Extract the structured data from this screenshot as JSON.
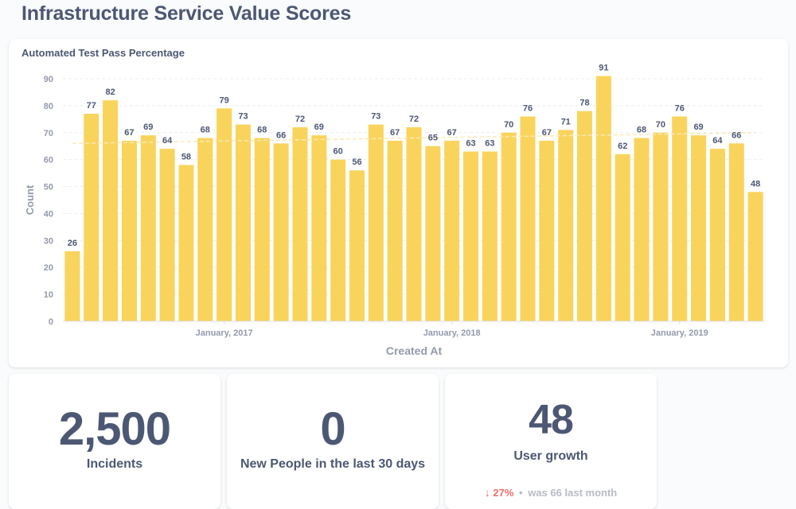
{
  "page": {
    "title": "Infrastructure Service Value Scores"
  },
  "chart_card": {
    "title": "Automated Test Pass Percentage"
  },
  "chart_data": {
    "type": "bar",
    "title": "Automated Test Pass Percentage",
    "xlabel": "Created At",
    "ylabel": "Count",
    "ylim": [
      0,
      90
    ],
    "yticks": [
      0,
      10,
      20,
      30,
      40,
      50,
      60,
      70,
      80,
      90
    ],
    "x_tick_labels": [
      "January, 2017",
      "January, 2018",
      "January, 2019"
    ],
    "x_tick_months": [
      "2017-01",
      "2018-01",
      "2019-01"
    ],
    "categories": [
      "2016-05",
      "2016-06",
      "2016-07",
      "2016-08",
      "2016-09",
      "2016-10",
      "2016-11",
      "2016-12",
      "2017-01",
      "2017-02",
      "2017-03",
      "2017-04",
      "2017-05",
      "2017-06",
      "2017-07",
      "2017-08",
      "2017-09",
      "2017-10",
      "2017-11",
      "2017-12",
      "2018-01",
      "2018-02",
      "2018-03",
      "2018-04",
      "2018-05",
      "2018-06",
      "2018-07",
      "2018-08",
      "2018-09",
      "2018-10",
      "2018-11",
      "2018-12",
      "2019-01",
      "2019-02",
      "2019-03",
      "2019-04",
      "2019-05"
    ],
    "values": [
      26,
      77,
      82,
      67,
      69,
      64,
      58,
      68,
      79,
      73,
      68,
      66,
      72,
      69,
      60,
      56,
      73,
      67,
      72,
      65,
      67,
      63,
      63,
      70,
      76,
      67,
      71,
      78,
      91,
      62,
      68,
      70,
      76,
      69,
      64,
      66,
      48
    ],
    "data_labels": true,
    "grid": true,
    "trend_line": {
      "start": 66,
      "end": 70
    },
    "colors": {
      "bar": "#f9d45c",
      "trend": "#f9e9b6",
      "grid": "#eceef1",
      "axis_text": "#949aab",
      "label_text": "#4c5773"
    }
  },
  "scalars": [
    {
      "value": "2,500",
      "label": "Incidents"
    },
    {
      "value": "0",
      "label": "New People in the last 30 days"
    },
    {
      "value": "48",
      "label": "User growth"
    }
  ],
  "trend": {
    "arrow": "↓",
    "percent": "27%",
    "dot": "•",
    "was_label": "was",
    "previous_value": "66",
    "period": "last month",
    "color": "#ed6e6e"
  }
}
